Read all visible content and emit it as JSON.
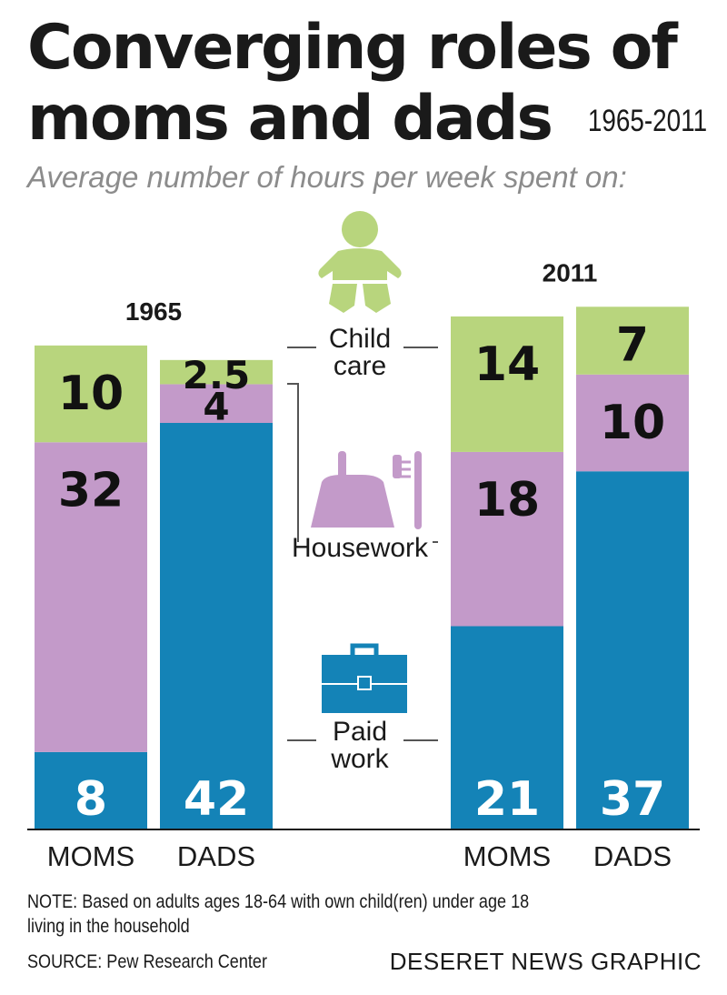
{
  "title": {
    "line1": "Converging roles of",
    "line2": "moms and dads",
    "date_range": "1965-2011"
  },
  "subtitle": "Average number of hours per week spent on:",
  "chart_data": {
    "type": "bar",
    "stacked": true,
    "groups": [
      "1965",
      "2011"
    ],
    "categories": [
      "MOMS",
      "DADS",
      "MOMS",
      "DADS"
    ],
    "category_group": [
      "1965",
      "1965",
      "2011",
      "2011"
    ],
    "series": [
      {
        "name": "Paid work",
        "label": "Paid\nwork",
        "values": [
          8,
          42,
          21,
          37
        ],
        "color": "#1483b7",
        "value_color": "#ffffff"
      },
      {
        "name": "Housework",
        "label": "Housework",
        "values": [
          32,
          4,
          18,
          10
        ],
        "color": "#c39ac9",
        "value_color": "#111111"
      },
      {
        "name": "Child care",
        "label": "Child\ncare",
        "values": [
          10,
          2.5,
          14,
          7
        ],
        "color": "#b8d57d",
        "value_color": "#111111"
      }
    ],
    "value_labels": [
      [
        "8",
        "42",
        "21",
        "37"
      ],
      [
        "32",
        "4",
        "18",
        "10"
      ],
      [
        "10",
        "2.5",
        "14",
        "7"
      ]
    ],
    "ylim": [
      0,
      56
    ],
    "grid": false,
    "legend": "center",
    "icons": [
      "baby-icon",
      "dustpan-brush-icon",
      "briefcase-icon"
    ]
  },
  "footer": {
    "note_line1": "NOTE: Based on adults ages 18-64 with own child(ren) under age 18",
    "note_line2": "living in the household",
    "source": "SOURCE: Pew Research Center",
    "credit": "DESERET NEWS GRAPHIC"
  }
}
